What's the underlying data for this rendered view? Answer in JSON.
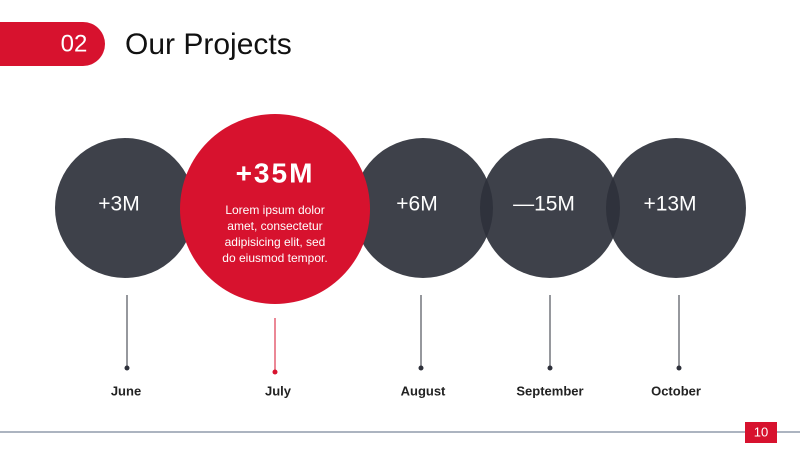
{
  "header": {
    "number": "02",
    "title": "Our Projects"
  },
  "items": [
    {
      "value": "+3M",
      "month": "June"
    },
    {
      "value": "+35M",
      "month": "July",
      "description": [
        "Lorem ipsum dolor",
        "amet, consectetur",
        "adipisicing elit, sed",
        "do eiusmod tempor."
      ]
    },
    {
      "value": "+6M",
      "month": "August"
    },
    {
      "value": "—15M",
      "month": "September"
    },
    {
      "value": "+13M",
      "month": "October"
    }
  ],
  "page_number": "10"
}
